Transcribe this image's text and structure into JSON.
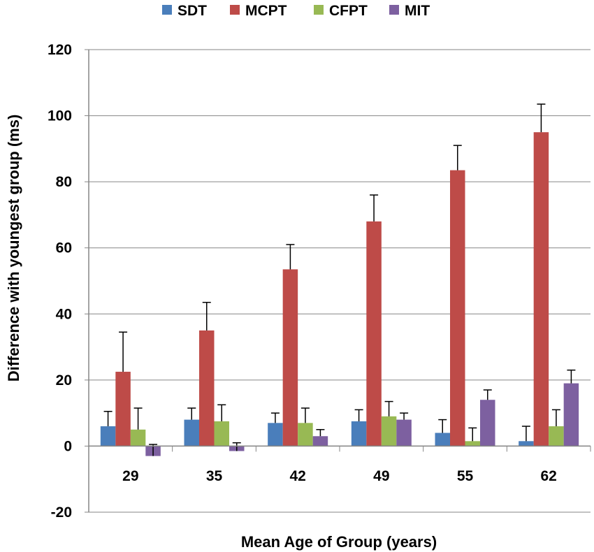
{
  "chart_data": {
    "type": "bar",
    "title": "",
    "xlabel": "Mean Age of Group (years)",
    "ylabel": "Difference with youngest group (ms)",
    "ylim": [
      -20,
      120
    ],
    "yticks": [
      -20,
      0,
      20,
      40,
      60,
      80,
      100,
      120
    ],
    "ytick_labels": [
      "-20",
      "0",
      "20",
      "40",
      "60",
      "80",
      "100",
      "120"
    ],
    "grid": true,
    "legend_position": "top",
    "categories": [
      "29",
      "35",
      "42",
      "49",
      "55",
      "62"
    ],
    "series": [
      {
        "name": "SDT",
        "color": "#4a7ebb",
        "values": [
          6,
          8,
          7,
          7.5,
          4,
          1.5
        ],
        "errors": [
          4.5,
          3.5,
          3,
          3.5,
          4,
          4.5
        ]
      },
      {
        "name": "MCPT",
        "color": "#be4b48",
        "values": [
          22.5,
          35,
          53.5,
          68,
          83.5,
          95
        ],
        "errors": [
          12,
          8.5,
          7.5,
          8,
          7.5,
          8.5
        ]
      },
      {
        "name": "CFPT",
        "color": "#98b954",
        "values": [
          5,
          7.5,
          7,
          9,
          1.5,
          6
        ],
        "errors": [
          6.5,
          5,
          4.5,
          4.5,
          4,
          5
        ]
      },
      {
        "name": "MIT",
        "color": "#7d60a0",
        "values": [
          -3,
          -1.5,
          3,
          8,
          14,
          19
        ],
        "errors": [
          3.5,
          2.5,
          2,
          2,
          3,
          4
        ]
      }
    ]
  }
}
